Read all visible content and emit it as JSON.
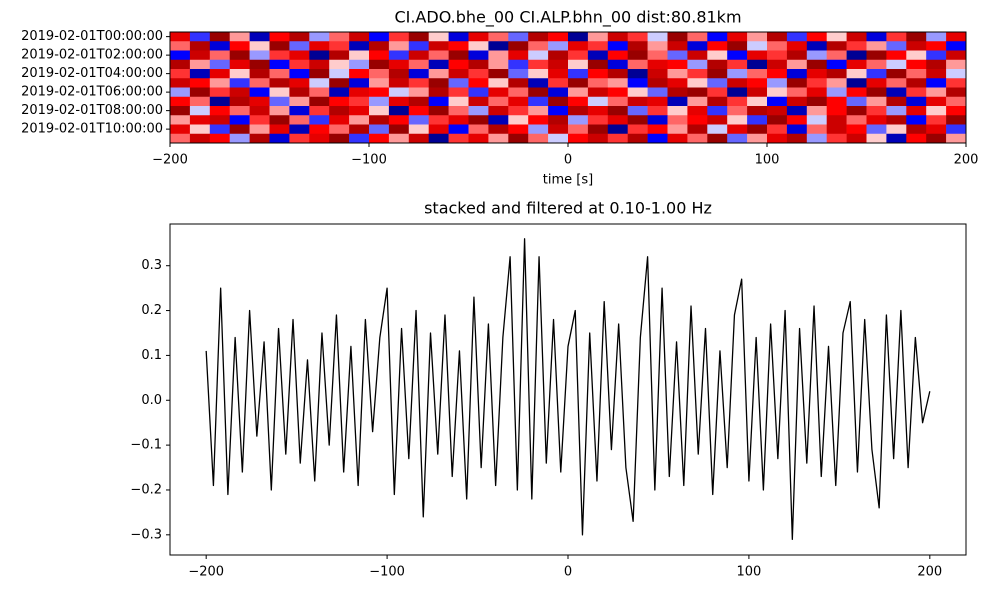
{
  "chart_data": [
    {
      "type": "heatmap",
      "title": "CI.ADO.bhe_00 CI.ALP.bhn_00  dist:80.81km",
      "xlabel": "time [s]",
      "colormap": "seismic",
      "vlim": [
        -1,
        1
      ],
      "rows": [
        "2019-02-01T00:00:00",
        null,
        "2019-02-01T02:00:00",
        null,
        "2019-02-01T04:00:00",
        null,
        "2019-02-01T06:00:00",
        null,
        "2019-02-01T08:00:00",
        null,
        "2019-02-01T10:00:00",
        null
      ],
      "xlim": [
        -200,
        200
      ],
      "xticks": [
        {
          "value": -200,
          "label": "−200"
        },
        {
          "value": -100,
          "label": "−100"
        },
        0,
        100,
        200
      ],
      "values": [
        [
          0.6,
          -0.4,
          0.9,
          0.2,
          -0.7,
          0.5,
          0.8,
          -0.2,
          0.3,
          0.7,
          -0.5,
          0.4,
          0.9,
          0.1,
          -0.6,
          0.6,
          0.3,
          -0.3,
          0.8,
          0.5,
          -0.8,
          0.2,
          0.7,
          0.4,
          -0.1,
          0.9,
          0.3,
          -0.5,
          0.6,
          0.2,
          0.8,
          -0.4,
          0.5,
          0.1,
          0.7,
          -0.6,
          0.4,
          0.9,
          -0.2,
          0.6
        ],
        [
          0.3,
          0.8,
          -0.6,
          0.5,
          0.1,
          0.9,
          -0.3,
          0.6,
          0.4,
          -0.7,
          0.8,
          0.2,
          -0.4,
          0.7,
          0.5,
          0.1,
          -0.8,
          0.9,
          0.3,
          -0.2,
          0.6,
          0.4,
          -0.5,
          0.8,
          0.2,
          0.7,
          -0.6,
          0.5,
          0.9,
          -0.1,
          0.3,
          0.6,
          -0.7,
          0.8,
          0.4,
          0.2,
          -0.3,
          0.7,
          0.5,
          -0.5
        ],
        [
          -0.5,
          0.7,
          0.3,
          0.9,
          -0.2,
          0.4,
          0.6,
          -0.8,
          0.8,
          0.1,
          0.5,
          -0.4,
          0.7,
          0.3,
          0.9,
          -0.6,
          0.2,
          0.6,
          -0.1,
          0.8,
          0.4,
          -0.7,
          0.5,
          0.9,
          0.3,
          -0.3,
          0.7,
          0.1,
          -0.5,
          0.6,
          0.4,
          0.8,
          -0.2,
          0.3,
          -0.8,
          0.9,
          0.5,
          0.1,
          -0.4,
          0.7
        ],
        [
          0.8,
          0.2,
          -0.3,
          0.6,
          0.9,
          -0.5,
          0.4,
          0.7,
          0.1,
          -0.2,
          0.9,
          0.6,
          0.3,
          -0.7,
          0.5,
          0.8,
          0.2,
          -0.4,
          0.4,
          0.7,
          0.1,
          0.9,
          -0.6,
          0.3,
          0.6,
          0.5,
          -0.2,
          0.8,
          0.4,
          -0.8,
          0.7,
          0.2,
          0.9,
          -0.5,
          0.6,
          0.3,
          -0.1,
          0.5,
          0.8,
          0.2
        ],
        [
          0.4,
          -0.7,
          0.6,
          0.1,
          0.8,
          0.3,
          -0.5,
          0.9,
          -0.1,
          0.5,
          0.3,
          0.8,
          -0.6,
          0.2,
          0.7,
          0.4,
          0.9,
          -0.3,
          0.1,
          0.6,
          -0.4,
          0.5,
          0.8,
          -0.8,
          0.7,
          0.2,
          0.4,
          0.9,
          -0.2,
          0.3,
          0.5,
          -0.6,
          0.6,
          0.8,
          0.1,
          -0.4,
          0.9,
          0.3,
          0.7,
          -0.1
        ],
        [
          0.7,
          0.5,
          0.2,
          -0.4,
          0.3,
          0.8,
          0.6,
          -0.1,
          0.9,
          -0.6,
          0.2,
          0.7,
          0.4,
          0.9,
          -0.3,
          0.5,
          0.1,
          0.8,
          -0.7,
          0.4,
          0.9,
          0.3,
          0.2,
          -0.5,
          0.8,
          0.6,
          0.1,
          -0.3,
          0.7,
          0.5,
          -0.2,
          0.9,
          0.4,
          0.2,
          -0.8,
          0.6,
          0.3,
          0.8,
          -0.5,
          0.4
        ],
        [
          -0.2,
          0.9,
          0.4,
          0.7,
          -0.5,
          0.1,
          0.8,
          0.3,
          -0.7,
          0.6,
          0.5,
          -0.1,
          0.2,
          0.8,
          0.4,
          -0.4,
          0.6,
          0.3,
          0.9,
          -0.6,
          0.2,
          0.7,
          0.5,
          0.1,
          -0.3,
          0.8,
          0.9,
          0.4,
          -0.8,
          0.7,
          0.1,
          0.3,
          0.6,
          -0.2,
          0.5,
          0.9,
          -0.7,
          0.4,
          0.2,
          0.8
        ],
        [
          0.5,
          0.3,
          -0.8,
          0.8,
          0.6,
          -0.3,
          0.2,
          0.9,
          0.5,
          0.4,
          -0.2,
          0.6,
          0.8,
          -0.5,
          0.1,
          0.7,
          0.3,
          0.6,
          -0.4,
          0.9,
          0.5,
          -0.1,
          0.3,
          0.7,
          0.6,
          -0.7,
          0.2,
          0.8,
          0.4,
          0.1,
          -0.5,
          0.7,
          0.9,
          0.5,
          -0.3,
          0.2,
          0.8,
          -0.6,
          0.6,
          0.3
        ],
        [
          0.9,
          -0.1,
          0.5,
          0.3,
          0.7,
          0.2,
          -0.6,
          0.4,
          0.8,
          0.6,
          0.1,
          -0.8,
          0.5,
          0.9,
          0.3,
          -0.2,
          0.7,
          0.4,
          0.2,
          -0.5,
          0.8,
          0.6,
          0.9,
          -0.3,
          0.4,
          0.1,
          0.6,
          -0.4,
          0.3,
          0.8,
          0.7,
          -0.7,
          0.2,
          0.5,
          0.9,
          0.4,
          -0.2,
          0.6,
          0.1,
          0.5
        ],
        [
          0.2,
          0.6,
          0.7,
          -0.5,
          0.4,
          0.9,
          0.3,
          -0.4,
          0.6,
          0.2,
          0.8,
          0.5,
          -0.3,
          0.4,
          0.6,
          0.9,
          -0.7,
          0.1,
          0.5,
          0.8,
          -0.2,
          0.4,
          0.6,
          0.9,
          -0.6,
          0.3,
          0.5,
          0.7,
          0.1,
          -0.4,
          0.9,
          0.5,
          -0.1,
          0.7,
          0.3,
          0.6,
          0.8,
          -0.5,
          0.4,
          0.9
        ],
        [
          0.6,
          0.1,
          -0.4,
          0.9,
          0.2,
          0.6,
          -0.7,
          0.5,
          0.3,
          0.8,
          -0.3,
          0.9,
          0.1,
          0.6,
          -0.5,
          0.3,
          0.8,
          0.5,
          -0.2,
          0.7,
          0.3,
          0.9,
          -0.8,
          0.4,
          0.5,
          0.2,
          0.8,
          -0.1,
          0.6,
          0.9,
          0.4,
          -0.6,
          0.3,
          0.7,
          0.5,
          -0.3,
          0.1,
          0.8,
          0.6,
          -0.4
        ],
        [
          0.3,
          0.7,
          0.5,
          -0.2,
          0.8,
          -0.6,
          0.4,
          0.6,
          0.9,
          -0.4,
          0.5,
          0.2,
          0.7,
          -0.8,
          0.4,
          0.6,
          0.2,
          0.9,
          0.3,
          -0.1,
          0.5,
          0.7,
          0.4,
          0.8,
          -0.5,
          0.6,
          0.3,
          0.9,
          -0.3,
          0.2,
          0.6,
          0.8,
          -0.2,
          0.4,
          0.7,
          0.1,
          -0.7,
          0.5,
          0.9,
          0.2
        ]
      ]
    },
    {
      "type": "line",
      "title": "stacked and filtered at 0.10-1.00 Hz",
      "color": "#000000",
      "xlim": [
        -220,
        220
      ],
      "ylim": [
        -0.345,
        0.393
      ],
      "xticks": [
        {
          "value": -200,
          "label": "−200"
        },
        {
          "value": -100,
          "label": "−100"
        },
        0,
        100,
        200
      ],
      "yticks": [
        {
          "value": -0.3,
          "label": "−0.3"
        },
        {
          "value": -0.2,
          "label": "−0.2"
        },
        {
          "value": -0.1,
          "label": "−0.1"
        },
        {
          "value": 0,
          "label": "0.0"
        },
        0.1,
        0.2,
        0.3
      ],
      "x": [
        -200,
        -196,
        -192,
        -188,
        -184,
        -180,
        -176,
        -172,
        -168,
        -164,
        -160,
        -156,
        -152,
        -148,
        -144,
        -140,
        -136,
        -132,
        -128,
        -124,
        -120,
        -116,
        -112,
        -108,
        -104,
        -100,
        -96,
        -92,
        -88,
        -84,
        -80,
        -76,
        -72,
        -68,
        -64,
        -60,
        -56,
        -52,
        -48,
        -44,
        -40,
        -36,
        -32,
        -28,
        -24,
        -20,
        -16,
        -12,
        -8,
        -4,
        0,
        4,
        8,
        12,
        16,
        20,
        24,
        28,
        32,
        36,
        40,
        44,
        48,
        52,
        56,
        60,
        64,
        68,
        72,
        76,
        80,
        84,
        88,
        92,
        96,
        100,
        104,
        108,
        112,
        116,
        120,
        124,
        128,
        132,
        136,
        140,
        144,
        148,
        152,
        156,
        160,
        164,
        168,
        172,
        176,
        180,
        184,
        188,
        192,
        196,
        200
      ],
      "values": [
        0.11,
        -0.19,
        0.25,
        -0.21,
        0.14,
        -0.16,
        0.2,
        -0.08,
        0.13,
        -0.2,
        0.16,
        -0.12,
        0.18,
        -0.14,
        0.09,
        -0.18,
        0.15,
        -0.1,
        0.19,
        -0.16,
        0.12,
        -0.19,
        0.18,
        -0.07,
        0.14,
        0.25,
        -0.21,
        0.16,
        -0.13,
        0.2,
        -0.26,
        0.15,
        -0.12,
        0.19,
        -0.17,
        0.11,
        -0.22,
        0.23,
        -0.15,
        0.17,
        -0.19,
        0.14,
        0.32,
        -0.2,
        0.36,
        -0.22,
        0.32,
        -0.14,
        0.18,
        -0.16,
        0.12,
        0.2,
        -0.3,
        0.15,
        -0.18,
        0.22,
        -0.11,
        0.17,
        -0.15,
        -0.27,
        0.14,
        0.32,
        -0.2,
        0.25,
        -0.17,
        0.13,
        -0.19,
        0.21,
        -0.12,
        0.16,
        -0.21,
        0.11,
        -0.15,
        0.19,
        0.27,
        -0.18,
        0.14,
        -0.2,
        0.17,
        -0.13,
        0.2,
        -0.31,
        0.16,
        -0.14,
        0.21,
        -0.17,
        0.12,
        -0.19,
        0.15,
        0.22,
        -0.16,
        0.18,
        -0.11,
        -0.24,
        0.19,
        -0.13,
        0.2,
        -0.15,
        0.14,
        -0.05,
        0.02
      ]
    }
  ]
}
